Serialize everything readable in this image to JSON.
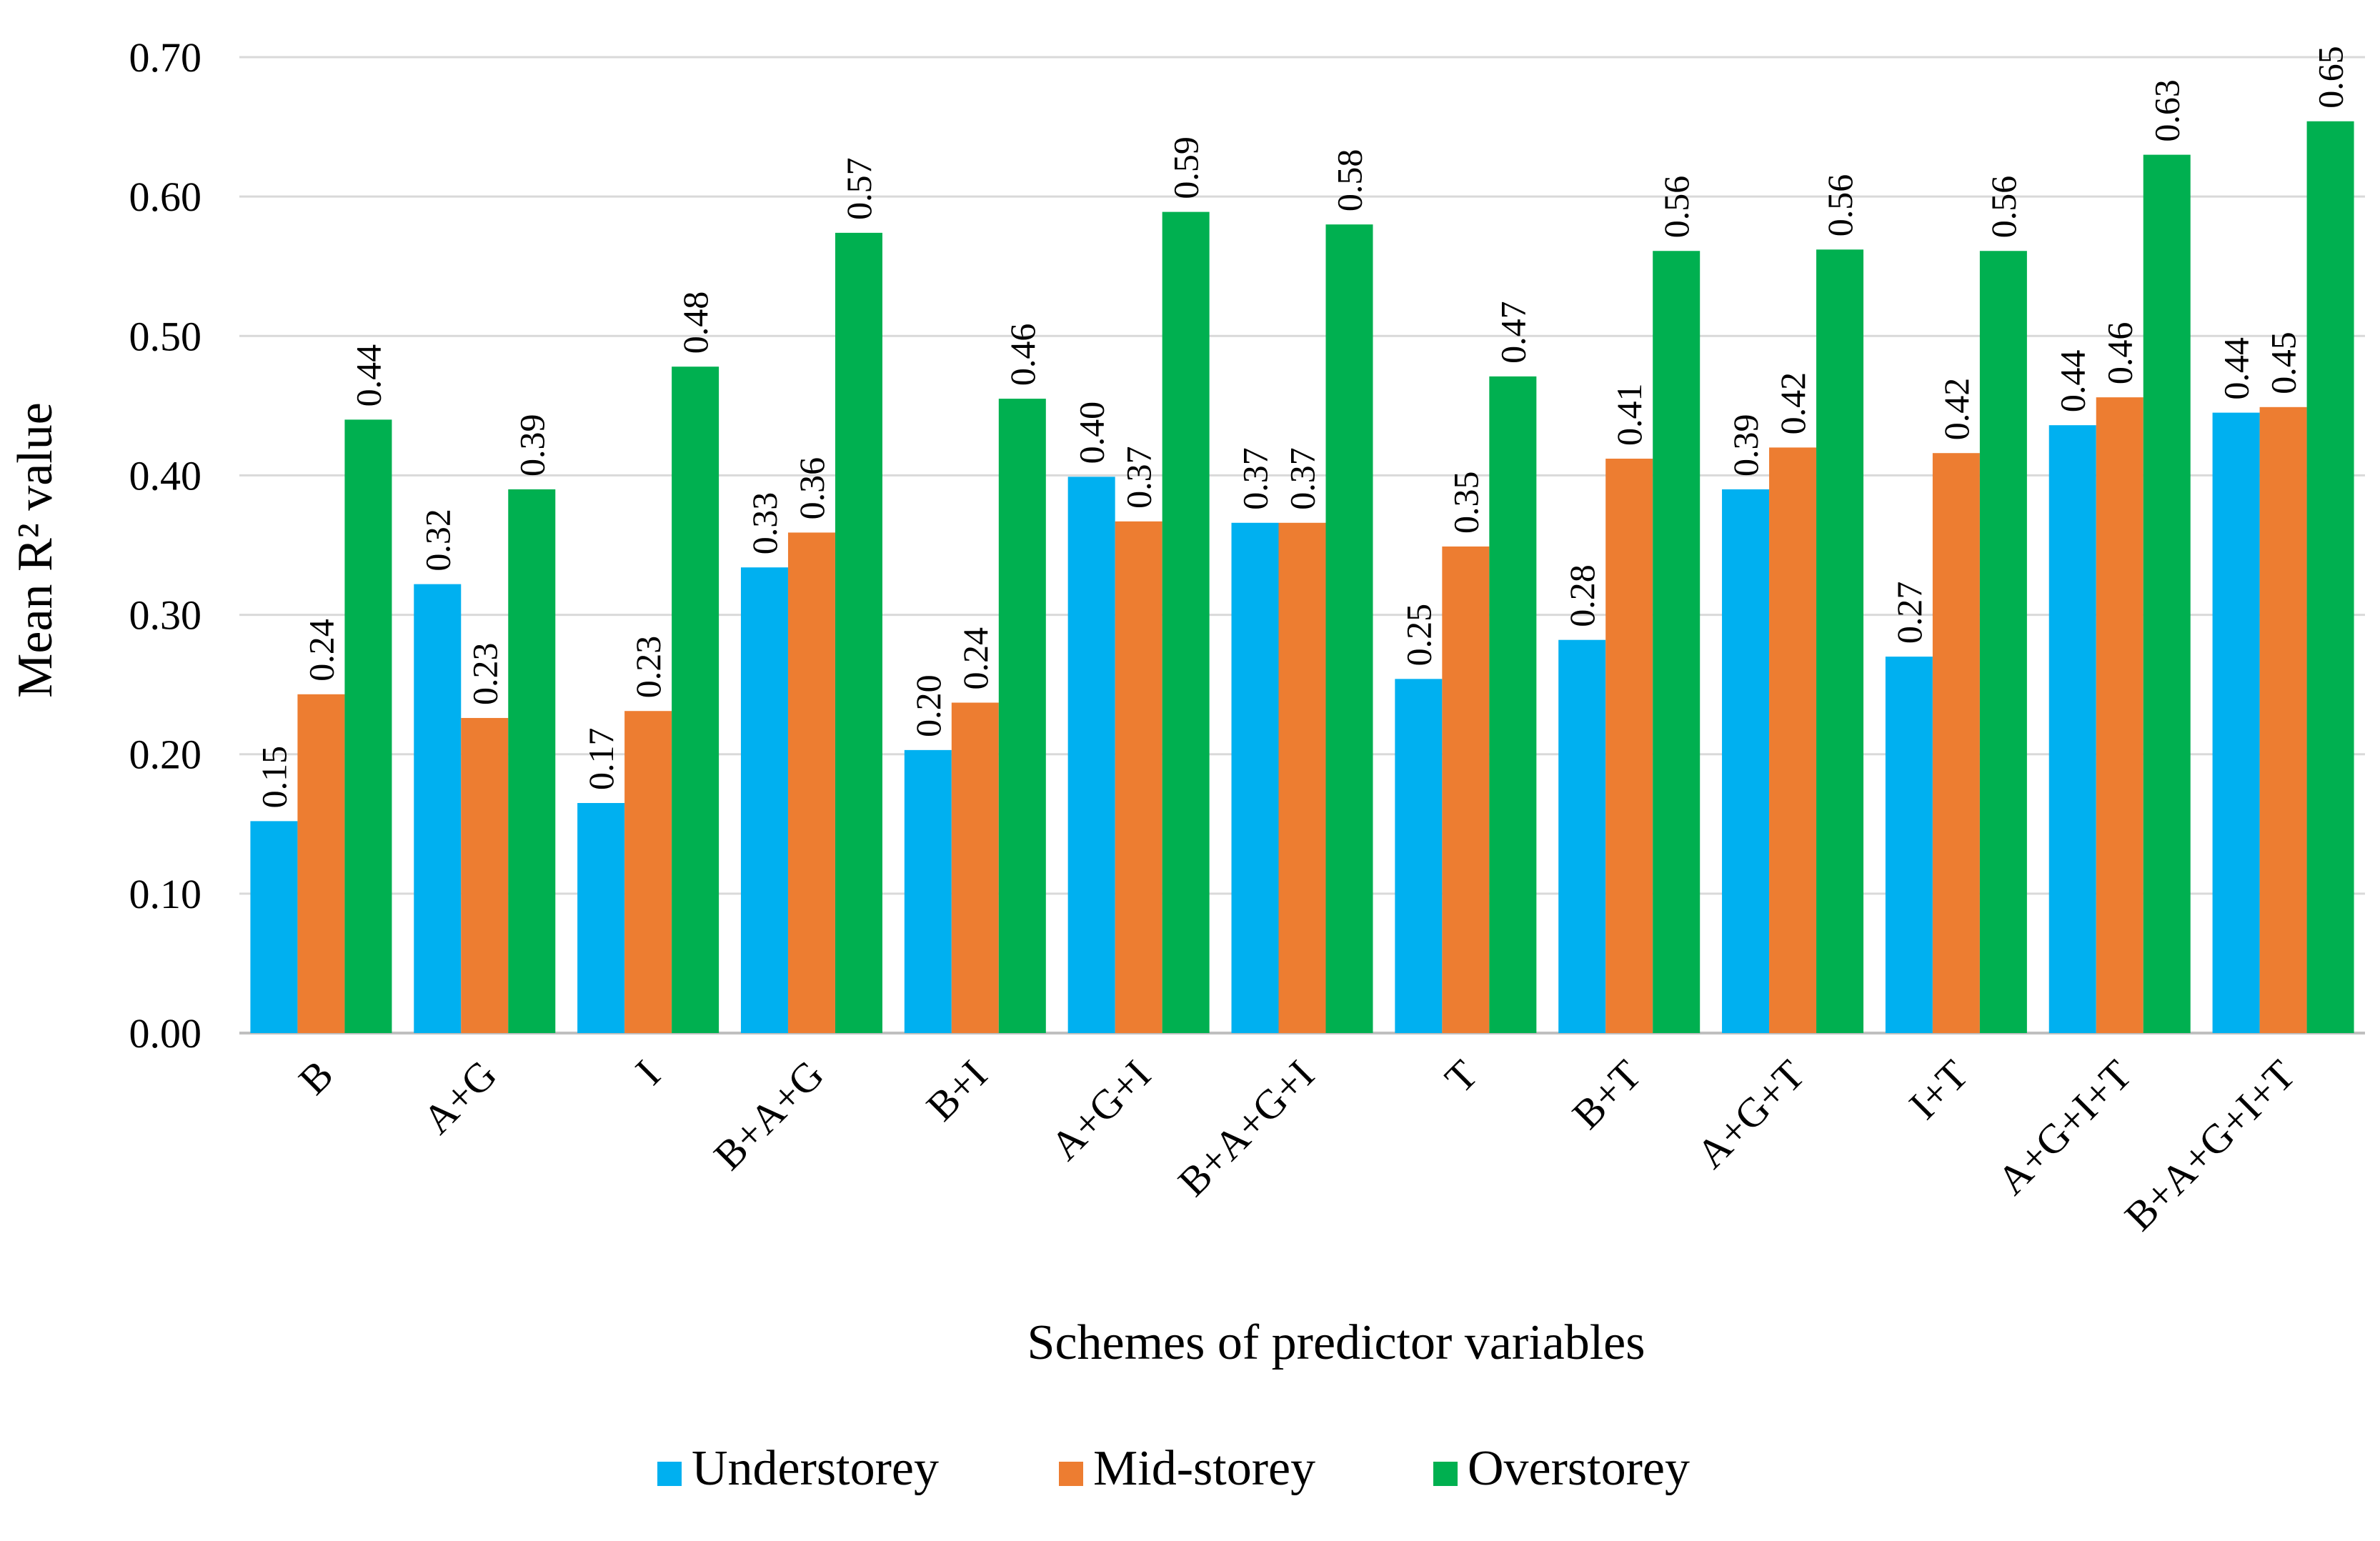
{
  "chart_data": {
    "type": "bar",
    "title": "",
    "xlabel": "Schemes of predictor variables",
    "ylabel": "Mean R² value",
    "ylim": [
      0,
      0.7
    ],
    "yticks": [
      "0.00",
      "0.10",
      "0.20",
      "0.30",
      "0.40",
      "0.50",
      "0.60",
      "0.70"
    ],
    "grid": true,
    "legend_position": "bottom",
    "categories": [
      "B",
      "A+G",
      "I",
      "B+A+G",
      "B+I",
      "A+G+I",
      "B+A+G+I",
      "T",
      "B+T",
      "A+G+T",
      "I+T",
      "A+G+I+T",
      "B+A+G+I+T"
    ],
    "series": [
      {
        "name": "Understorey",
        "color": "#00b0f0",
        "values": [
          0.152,
          0.322,
          0.165,
          0.334,
          0.203,
          0.399,
          0.366,
          0.254,
          0.282,
          0.39,
          0.27,
          0.436,
          0.445
        ],
        "labels": [
          "0.15",
          "0.32",
          "0.17",
          "0.33",
          "0.20",
          "0.40",
          "0.37",
          "0.25",
          "0.28",
          "0.39",
          "0.27",
          "0.44",
          "0.44"
        ]
      },
      {
        "name": "Mid-storey",
        "color": "#ed7d31",
        "values": [
          0.243,
          0.226,
          0.231,
          0.359,
          0.237,
          0.367,
          0.366,
          0.349,
          0.412,
          0.42,
          0.416,
          0.456,
          0.449
        ],
        "labels": [
          "0.24",
          "0.23",
          "0.23",
          "0.36",
          "0.24",
          "0.37",
          "0.37",
          "0.35",
          "0.41",
          "0.42",
          "0.42",
          "0.46",
          "0.45"
        ]
      },
      {
        "name": "Overstorey",
        "color": "#00b050",
        "values": [
          0.44,
          0.39,
          0.478,
          0.574,
          0.455,
          0.589,
          0.58,
          0.471,
          0.561,
          0.562,
          0.561,
          0.63,
          0.654
        ],
        "labels": [
          "0.44",
          "0.39",
          "0.48",
          "0.57",
          "0.46",
          "0.59",
          "0.58",
          "0.47",
          "0.56",
          "0.56",
          "0.56",
          "0.63",
          "0.65"
        ]
      }
    ]
  }
}
